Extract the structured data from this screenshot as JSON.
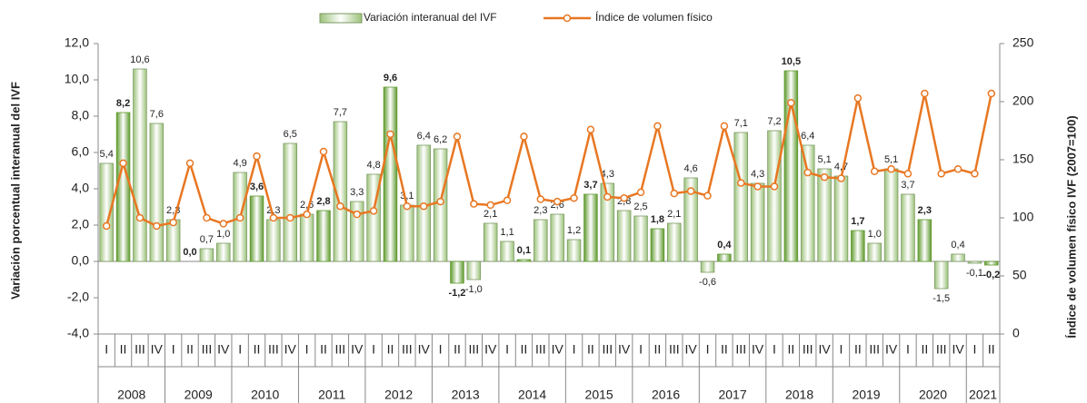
{
  "chart_data": {
    "type": "bar-line",
    "y_label": "Variación porcentual interanual del IVF",
    "y2_label": "Índice de volumen físico IVF (2007=100)",
    "categories": [
      "I",
      "II",
      "III",
      "IV",
      "I",
      "II",
      "III",
      "IV",
      "I",
      "II",
      "III",
      "IV",
      "I",
      "II",
      "III",
      "IV",
      "I",
      "II",
      "III",
      "IV",
      "I",
      "II",
      "III",
      "IV",
      "I",
      "II",
      "III",
      "IV",
      "I",
      "II",
      "III",
      "IV",
      "I",
      "II",
      "III",
      "IV",
      "I",
      "II",
      "III",
      "IV",
      "I",
      "II",
      "III",
      "IV",
      "I",
      "II",
      "III",
      "IV",
      "I",
      "II",
      "III",
      "IV",
      "I",
      "II"
    ],
    "years": [
      "2008",
      "2009",
      "2010",
      "2011",
      "2012",
      "2013",
      "2014",
      "2015",
      "2016",
      "2017",
      "2018",
      "2019",
      "2020",
      "2021"
    ],
    "highlight_category": "II",
    "series": [
      {
        "name": "Variación interanual del IVF",
        "kind": "bar",
        "color": "#9cc27a",
        "highlight_color": "#5f9a2e",
        "values": [
          5.4,
          8.2,
          10.6,
          7.6,
          2.3,
          0.0,
          0.7,
          1.0,
          4.9,
          3.6,
          2.3,
          6.5,
          2.6,
          2.8,
          7.7,
          3.3,
          4.8,
          9.6,
          3.1,
          6.4,
          6.2,
          -1.2,
          -1.0,
          2.1,
          1.1,
          0.1,
          2.3,
          2.6,
          1.2,
          3.7,
          4.3,
          2.8,
          2.5,
          1.8,
          2.1,
          4.6,
          -0.6,
          0.4,
          7.1,
          4.3,
          7.2,
          10.5,
          6.4,
          5.1,
          4.7,
          1.7,
          1.0,
          5.1,
          3.7,
          2.3,
          -1.5,
          0.4,
          -0.1,
          -0.2
        ],
        "value_labels": [
          "5,4",
          "8,2",
          "10,6",
          "7,6",
          "2,3",
          "0,0",
          "0,7",
          "1,0",
          "4,9",
          "3,6",
          "2,3",
          "6,5",
          "2,6",
          "2,8",
          "7,7",
          "3,3",
          "4,8",
          "9,6",
          "3,1",
          "6,4",
          "6,2",
          "-1,2",
          "-1,0",
          "2,1",
          "1,1",
          "0,1",
          "2,3",
          "2,6",
          "1,2",
          "3,7",
          "4,3",
          "2,8",
          "2,5",
          "1,8",
          "2,1",
          "4,6",
          "-0,6",
          "0,4",
          "7,1",
          "4,3",
          "7,2",
          "10,5",
          "6,4",
          "5,1",
          "4,7",
          "1,7",
          "1,0",
          "5,1",
          "3,7",
          "2,3",
          "-1,5",
          "0,4",
          "-0,1",
          "-0,2"
        ]
      },
      {
        "name": "Índice de volumen físico",
        "kind": "line",
        "axis": "y2",
        "color": "#e87722",
        "values": [
          93,
          147,
          100,
          93,
          96,
          147,
          100,
          95,
          100,
          153,
          100,
          100,
          103,
          157,
          110,
          103,
          106,
          172,
          110,
          110,
          114,
          170,
          112,
          111,
          115,
          170,
          116,
          114,
          117,
          176,
          118,
          117,
          122,
          179,
          121,
          123,
          119,
          179,
          130,
          127,
          127,
          199,
          139,
          135,
          134,
          203,
          140,
          142,
          138,
          207,
          138,
          142,
          138,
          207
        ]
      }
    ],
    "ylim": [
      -4,
      12
    ],
    "yticks": [
      {
        "value": -4,
        "label": "-4,0"
      },
      {
        "value": -2,
        "label": "-2,0"
      },
      {
        "value": 0,
        "label": "0,0"
      },
      {
        "value": 2,
        "label": "2,0"
      },
      {
        "value": 4,
        "label": "4,0"
      },
      {
        "value": 6,
        "label": "6,0"
      },
      {
        "value": 8,
        "label": "8,0"
      },
      {
        "value": 10,
        "label": "10,0"
      },
      {
        "value": 12,
        "label": "12,0"
      }
    ],
    "y2lim": [
      0,
      250
    ],
    "y2ticks": [
      0,
      50,
      100,
      150,
      200,
      250
    ],
    "legend": "top"
  }
}
